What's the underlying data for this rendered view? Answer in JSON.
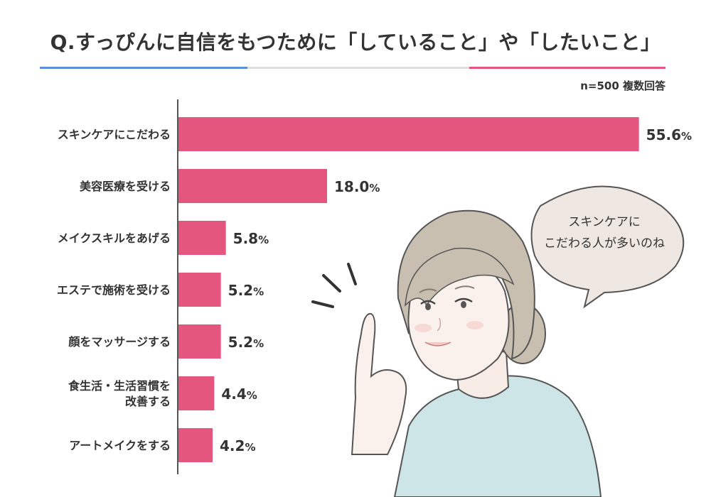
{
  "title": "Q.すっぴんに自信をもつために「していること」や「したいこと」",
  "sample_note": "n=500  複数回答",
  "speech_bubble": {
    "lines": [
      "スキンケアに",
      "こだわる人が多いのね"
    ]
  },
  "colors": {
    "bar": "#e5567f",
    "axis": "#555555",
    "rule_left": "#5b8fdc",
    "rule_mid": "#dcdcdc",
    "rule_right": "#e5567f",
    "bubble_fill": "#efe8e2",
    "shirt": "#cde5e6",
    "hair": "#c9bfb1"
  },
  "illustration": {
    "icon": "woman-pointing-illustration"
  },
  "chart_data": {
    "type": "bar",
    "orientation": "horizontal",
    "title": "Q.すっぴんに自信をもつために「していること」や「したいこと」",
    "xlabel": "",
    "ylabel": "",
    "unit": "%",
    "xlim": [
      0,
      60
    ],
    "grid": false,
    "legend": "none",
    "categories": [
      [
        "スキンケアにこだわる"
      ],
      [
        "美容医療を受ける"
      ],
      [
        "メイクスキルをあげる"
      ],
      [
        "エステで施術を受ける"
      ],
      [
        "顔をマッサージする"
      ],
      [
        "食生活・生活習慣を",
        "改善する"
      ],
      [
        "アートメイクをする"
      ]
    ],
    "values": [
      55.6,
      18.0,
      5.8,
      5.2,
      5.2,
      4.4,
      4.2
    ],
    "value_labels": [
      "55.6",
      "18.0",
      "5.8",
      "5.2",
      "5.2",
      "4.4",
      "4.2"
    ]
  }
}
